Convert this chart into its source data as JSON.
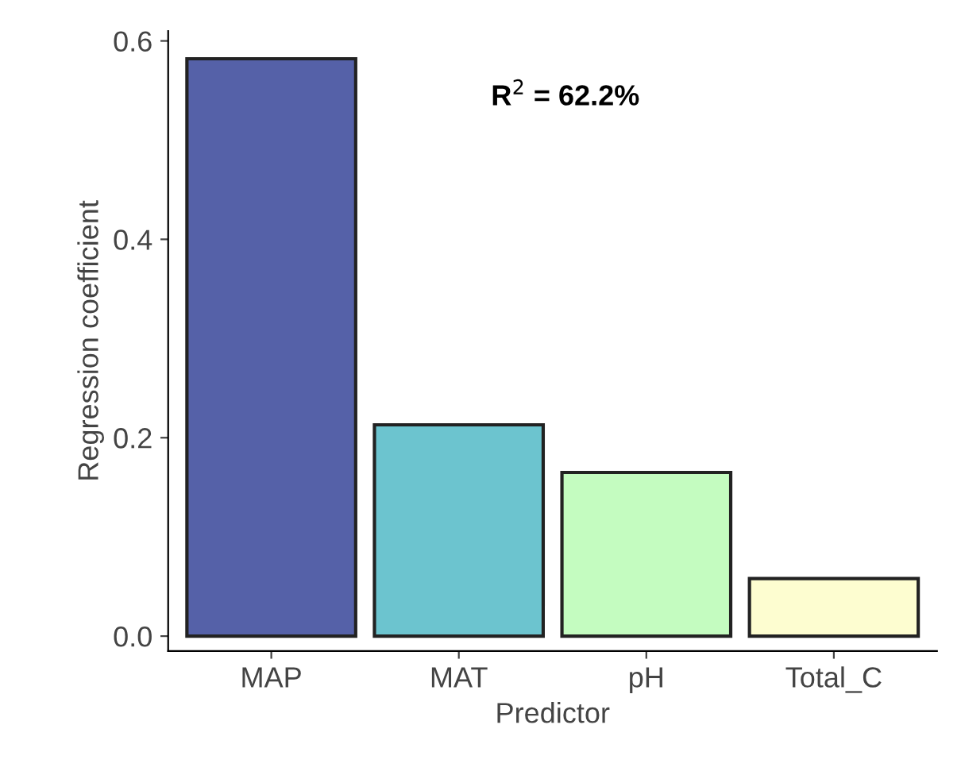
{
  "chart_data": {
    "type": "bar",
    "xlabel": "Predictor",
    "ylabel": "Regression coefficient",
    "categories": [
      "MAP",
      "MAT",
      "pH",
      "Total_C"
    ],
    "values": [
      0.582,
      0.213,
      0.165,
      0.058
    ],
    "colors": [
      "#5561a8",
      "#6cc4cf",
      "#c4fcc0",
      "#fdfdd0"
    ],
    "ylim": [
      -0.015,
      0.61
    ],
    "yticks": [
      {
        "value": 0,
        "label": "0.0"
      },
      {
        "value": 0.2,
        "label": "0.2"
      },
      {
        "value": 0.4,
        "label": "0.4"
      },
      {
        "value": 0.6,
        "label": "0.6"
      }
    ],
    "annotations": [
      "R$^{2}$ = 62.2%"
    ],
    "grid": false
  }
}
